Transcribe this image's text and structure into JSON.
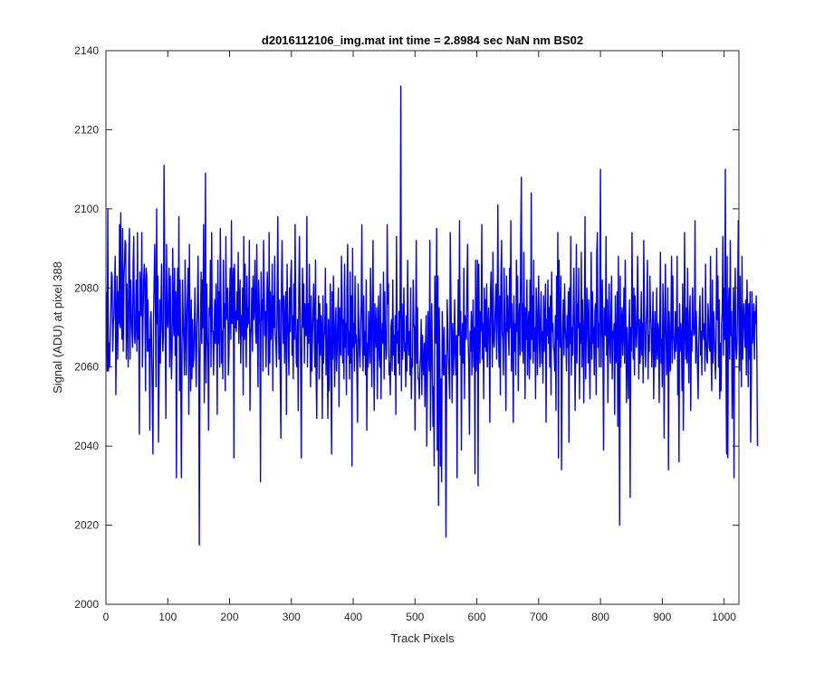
{
  "chart_data": {
    "type": "line",
    "title": "d2016112106_img.mat int time = 2.8984 sec  NaN nm BS02",
    "xlabel": "Track Pixels",
    "ylabel": "Signal (ADU) at pixel 388",
    "xlim": [
      0,
      1024
    ],
    "ylim": [
      2000,
      2140
    ],
    "xticks": [
      0,
      100,
      200,
      300,
      400,
      500,
      600,
      700,
      800,
      900,
      1000
    ],
    "yticks": [
      2000,
      2020,
      2040,
      2060,
      2080,
      2100,
      2120,
      2140
    ],
    "grid": false,
    "series_color": "#0000ff",
    "x_start": 1,
    "x_step": 1,
    "y": [
      2079,
      2059,
      2100,
      2059,
      2066,
      2060,
      2069,
      2075,
      2084,
      2083,
      2064,
      2071,
      2073,
      2080,
      2088,
      2053,
      2071,
      2083,
      2062,
      2079,
      2071,
      2096,
      2070,
      2099,
      2072,
      2067,
      2095,
      2064,
      2082,
      2086,
      2092,
      2091,
      2062,
      2081,
      2071,
      2060,
      2088,
      2095,
      2062,
      2082,
      2074,
      2069,
      2065,
      2086,
      2093,
      2068,
      2066,
      2072,
      2082,
      2064,
      2094,
      2067,
      2074,
      2043,
      2084,
      2077,
      2073,
      2094,
      2060,
      2072,
      2082,
      2086,
      2080,
      2054,
      2085,
      2083,
      2064,
      2077,
      2064,
      2067,
      2044,
      2072,
      2074,
      2064,
      2052,
      2038,
      2072,
      2082,
      2091,
      2075,
      2055,
      2100,
      2071,
      2083,
      2041,
      2058,
      2077,
      2061,
      2075,
      2086,
      2070,
      2064,
      2068,
      2111,
      2086,
      2068,
      2047,
      2091,
      2073,
      2070,
      2076,
      2085,
      2060,
      2083,
      2068,
      2057,
      2064,
      2090,
      2072,
      2068,
      2085,
      2063,
      2079,
      2032,
      2075,
      2085,
      2068,
      2098,
      2054,
      2082,
      2061,
      2032,
      2063,
      2082,
      2071,
      2066,
      2058,
      2087,
      2069,
      2058,
      2074,
      2079,
      2085,
      2048,
      2091,
      2067,
      2054,
      2077,
      2057,
      2072,
      2060,
      2062,
      2070,
      2080,
      2065,
      2055,
      2069,
      2075,
      2088,
      2071,
      2015,
      2060,
      2072,
      2084,
      2066,
      2082,
      2070,
      2096,
      2051,
      2068,
      2109,
      2056,
      2081,
      2069,
      2064,
      2044,
      2075,
      2073,
      2087,
      2060,
      2094,
      2069,
      2069,
      2058,
      2068,
      2077,
      2066,
      2081,
      2071,
      2048,
      2087,
      2066,
      2079,
      2060,
      2095,
      2078,
      2061,
      2069,
      2057,
      2087,
      2070,
      2076,
      2054,
      2093,
      2072,
      2077,
      2080,
      2058,
      2063,
      2076,
      2085,
      2067,
      2097,
      2071,
      2079,
      2085,
      2037,
      2086,
      2070,
      2074,
      2069,
      2079,
      2072,
      2089,
      2066,
      2076,
      2082,
      2061,
      2073,
      2068,
      2080,
      2053,
      2093,
      2067,
      2086,
      2070,
      2060,
      2083,
      2070,
      2075,
      2071,
      2092,
      2049,
      2068,
      2070,
      2080,
      2064,
      2083,
      2072,
      2075,
      2087,
      2069,
      2066,
      2091,
      2072,
      2055,
      2082,
      2076,
      2070,
      2031,
      2084,
      2072,
      2077,
      2059,
      2092,
      2080,
      2068,
      2074,
      2060,
      2074,
      2084,
      2075,
      2058,
      2094,
      2061,
      2079,
      2067,
      2071,
      2086,
      2054,
      2078,
      2070,
      2088,
      2068,
      2066,
      2060,
      2079,
      2098,
      2071,
      2062,
      2077,
      2057,
      2042,
      2081,
      2092,
      2074,
      2066,
      2078,
      2061,
      2071,
      2079,
      2048,
      2086,
      2074,
      2066,
      2058,
      2080,
      2069,
      2083,
      2087,
      2063,
      2073,
      2057,
      2081,
      2067,
      2096,
      2074,
      2061,
      2060,
      2072,
      2049,
      2079,
      2093,
      2075,
      2060,
      2037,
      2072,
      2085,
      2070,
      2081,
      2061,
      2076,
      2068,
      2068,
      2098,
      2060,
      2076,
      2066,
      2086,
      2071,
      2055,
      2078,
      2059,
      2067,
      2074,
      2081,
      2070,
      2060,
      2087,
      2058,
      2047,
      2072,
      2066,
      2078,
      2057,
      2076,
      2063,
      2073,
      2070,
      2047,
      2078,
      2061,
      2068,
      2069,
      2085,
      2058,
      2076,
      2064,
      2047,
      2072,
      2054,
      2067,
      2081,
      2060,
      2038,
      2079,
      2062,
      2083,
      2069,
      2055,
      2070,
      2075,
      2059,
      2064,
      2073,
      2080,
      2050,
      2075,
      2066,
      2063,
      2088,
      2078,
      2061,
      2072,
      2057,
      2086,
      2065,
      2071,
      2053,
      2080,
      2091,
      2063,
      2069,
      2057,
      2084,
      2061,
      2078,
      2035,
      2090,
      2065,
      2071,
      2059,
      2083,
      2066,
      2068,
      2058,
      2046,
      2081,
      2071,
      2064,
      2060,
      2070,
      2076,
      2096,
      2066,
      2059,
      2078,
      2063,
      2069,
      2058,
      2082,
      2044,
      2066,
      2060,
      2074,
      2067,
      2061,
      2085,
      2072,
      2055,
      2073,
      2092,
      2064,
      2049,
      2076,
      2070,
      2065,
      2075,
      2052,
      2068,
      2078,
      2063,
      2060,
      2081,
      2052,
      2067,
      2071,
      2066,
      2084,
      2057,
      2079,
      2069,
      2062,
      2064,
      2096,
      2076,
      2081,
      2058,
      2061,
      2053,
      2070,
      2072,
      2059,
      2082,
      2063,
      2068,
      2058,
      2073,
      2048,
      2093,
      2066,
      2069,
      2061,
      2074,
      2058,
      2080,
      2131,
      2054,
      2076,
      2062,
      2069,
      2080,
      2064,
      2066,
      2055,
      2073,
      2059,
      2087,
      2067,
      2063,
      2069,
      2058,
      2080,
      2052,
      2062,
      2060,
      2082,
      2071,
      2070,
      2044,
      2070,
      2092,
      2061,
      2075,
      2057,
      2057,
      2052,
      2060,
      2063,
      2072,
      2053,
      2068,
      2061,
      2058,
      2066,
      2050,
      2066,
      2073,
      2040,
      2058,
      2074,
      2064,
      2059,
      2092,
      2044,
      2060,
      2076,
      2064,
      2045,
      2055,
      2035,
      2083,
      2068,
      2066,
      2095,
      2039,
      2083,
      2025,
      2075,
      2064,
      2035,
      2057,
      2031,
      2074,
      2064,
      2058,
      2070,
      2058,
      2063,
      2017,
      2051,
      2077,
      2070,
      2062,
      2058,
      2052,
      2094,
      2078,
      2067,
      2051,
      2071,
      2058,
      2064,
      2077,
      2064,
      2058,
      2068,
      2032,
      2066,
      2082,
      2068,
      2097,
      2063,
      2074,
      2039,
      2067,
      2071,
      2061,
      2085,
      2052,
      2073,
      2070,
      2067,
      2081,
      2091,
      2067,
      2060,
      2043,
      2069,
      2064,
      2074,
      2058,
      2069,
      2077,
      2060,
      2070,
      2033,
      2087,
      2059,
      2067,
      2087,
      2030,
      2086,
      2071,
      2061,
      2074,
      2069,
      2096,
      2062,
      2071,
      2052,
      2080,
      2065,
      2077,
      2064,
      2081,
      2060,
      2069,
      2075,
      2068,
      2046,
      2078,
      2084,
      2072,
      2060,
      2089,
      2067,
      2065,
      2070,
      2076,
      2081,
      2062,
      2075,
      2101,
      2069,
      2060,
      2078,
      2053,
      2083,
      2092,
      2069,
      2067,
      2058,
      2085,
      2075,
      2065,
      2049,
      2083,
      2069,
      2078,
      2068,
      2063,
      2085,
      2070,
      2097,
      2059,
      2076,
      2067,
      2046,
      2078,
      2064,
      2071,
      2058,
      2087,
      2069,
      2083,
      2054,
      2072,
      2076,
      2063,
      2093,
      2108,
      2064,
      2076,
      2061,
      2089,
      2071,
      2052,
      2075,
      2067,
      2082,
      2058,
      2069,
      2074,
      2057,
      2082,
      2062,
      2104,
      2067,
      2078,
      2061,
      2087,
      2064,
      2070,
      2052,
      2080,
      2074,
      2058,
      2071,
      2083,
      2067,
      2060,
      2073,
      2079,
      2061,
      2069,
      2056,
      2078,
      2064,
      2071,
      2081,
      2046,
      2072,
      2068,
      2082,
      2066,
      2075,
      2060,
      2078,
      2053,
      2084,
      2069,
      2071,
      2065,
      2064,
      2059,
      2073,
      2049,
      2083,
      2067,
      2094,
      2037,
      2087,
      2072,
      2065,
      2083,
      2034,
      2061,
      2071,
      2077,
      2063,
      2081,
      2070,
      2067,
      2059,
      2073,
      2065,
      2079,
      2041,
      2080,
      2066,
      2093,
      2058,
      2070,
      2063,
      2074,
      2085,
      2069,
      2049,
      2067,
      2091,
      2061,
      2076,
      2070,
      2085,
      2052,
      2071,
      2066,
      2089,
      2060,
      2077,
      2069,
      2051,
      2072,
      2098,
      2057,
      2067,
      2080,
      2072,
      2061,
      2077,
      2063,
      2052,
      2069,
      2089,
      2062,
      2079,
      2066,
      2070,
      2058,
      2074,
      2076,
      2053,
      2089,
      2094,
      2065,
      2071,
      2060,
      2078,
      2110,
      2060,
      2073,
      2082,
      2064,
      2039,
      2075,
      2070,
      2068,
      2093,
      2063,
      2077,
      2051,
      2068,
      2081,
      2066,
      2061,
      2074,
      2083,
      2057,
      2069,
      2067,
      2071,
      2048,
      2078,
      2061,
      2063,
      2079,
      2045,
      2088,
      2064,
      2020,
      2083,
      2060,
      2071,
      2075,
      2063,
      2070,
      2080,
      2061,
      2087,
      2073,
      2051,
      2070,
      2063,
      2052,
      2069,
      2077,
      2027,
      2070,
      2064,
      2094,
      2073,
      2062,
      2080,
      2058,
      2078,
      2071,
      2065,
      2069,
      2088,
      2075,
      2057,
      2072,
      2061,
      2066,
      2079,
      2063,
      2071,
      2056,
      2092,
      2076,
      2065,
      2060,
      2071,
      2076,
      2087,
      2057,
      2068,
      2064,
      2083,
      2073,
      2070,
      2060,
      2068,
      2079,
      2052,
      2066,
      2074,
      2060,
      2065,
      2080,
      2062,
      2071,
      2069,
      2051,
      2073,
      2089,
      2061,
      2067,
      2055,
      2081,
      2073,
      2042,
      2067,
      2086,
      2071,
      2058,
      2063,
      2080,
      2034,
      2074,
      2067,
      2059,
      2072,
      2088,
      2061,
      2083,
      2068,
      2066,
      2062,
      2074,
      2064,
      2069,
      2088,
      2053,
      2070,
      2036,
      2076,
      2064,
      2071,
      2067,
      2054,
      2081,
      2044,
      2063,
      2094,
      2069,
      2062,
      2075,
      2061,
      2085,
      2066,
      2056,
      2073,
      2078,
      2049,
      2069,
      2064,
      2080,
      2071,
      2068,
      2069,
      2097,
      2061,
      2074,
      2067,
      2060,
      2052,
      2066,
      2073,
      2078,
      2063,
      2069,
      2058,
      2080,
      2069,
      2067,
      2071,
      2059,
      2086,
      2067,
      2062,
      2061,
      2076,
      2071,
      2065,
      2064,
      2088,
      2062,
      2054,
      2082,
      2061,
      2074,
      2069,
      2063,
      2057,
      2068,
      2090,
      2072,
      2083,
      2060,
      2077,
      2052,
      2066,
      2054,
      2071,
      2074,
      2093,
      2063,
      2080,
      2067,
      2110,
      2062,
      2038,
      2088,
      2037,
      2074,
      2080,
      2062,
      2092,
      2068,
      2074,
      2047,
      2060,
      2080,
      2032,
      2073,
      2085,
      2065,
      2062,
      2066,
      2079,
      2097,
      2068,
      2059,
      2083,
      2066,
      2055,
      2088,
      2062,
      2070,
      2076,
      2071,
      2065,
      2077,
      2058,
      2082,
      2074,
      2055,
      2076,
      2062,
      2079,
      2041,
      2056,
      2079,
      2066,
      2070,
      2076,
      2062,
      2074,
      2071,
      2078,
      2063,
      2040
    ]
  }
}
